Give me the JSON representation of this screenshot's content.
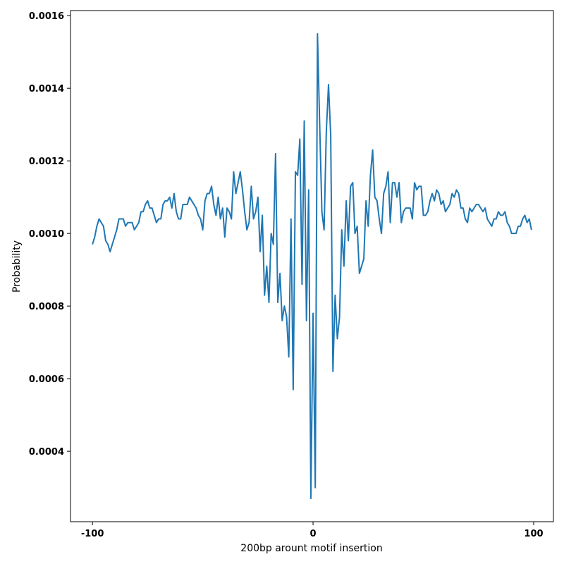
{
  "chart_data": {
    "type": "line",
    "xlabel": "200bp arount motif insertion",
    "ylabel": "Probability",
    "color": "#1f77b4",
    "grid": false,
    "xlim": [
      -109.95,
      108.95
    ],
    "xticks": [
      -100,
      0,
      100
    ],
    "ylim": [
      0.000206,
      0.001614
    ],
    "yticks": [
      0.0004,
      0.0006,
      0.0008,
      {
        "value": 0.001,
        "label": "0.0010"
      },
      0.0012,
      0.0014,
      0.0016
    ],
    "x": [
      -100,
      -99,
      -98,
      -97,
      -96,
      -95,
      -94,
      -93,
      -92,
      -91,
      -90,
      -89,
      -88,
      -87,
      -86,
      -85,
      -84,
      -83,
      -82,
      -81,
      -80,
      -79,
      -78,
      -77,
      -76,
      -75,
      -74,
      -73,
      -72,
      -71,
      -70,
      -69,
      -68,
      -67,
      -66,
      -65,
      -64,
      -63,
      -62,
      -61,
      -60,
      -59,
      -58,
      -57,
      -56,
      -55,
      -54,
      -53,
      -52,
      -51,
      -50,
      -49,
      -48,
      -47,
      -46,
      -45,
      -44,
      -43,
      -42,
      -41,
      -40,
      -39,
      -38,
      -37,
      -36,
      -35,
      -34,
      -33,
      -32,
      -31,
      -30,
      -29,
      -28,
      -27,
      -26,
      -25,
      -24,
      -23,
      -22,
      -21,
      -20,
      -19,
      -18,
      -17,
      -16,
      -15,
      -14,
      -13,
      -12,
      -11,
      -10,
      -9,
      -8,
      -7,
      -6,
      -5,
      -4,
      -3,
      -2,
      -1,
      0,
      1,
      2,
      3,
      4,
      5,
      6,
      7,
      8,
      9,
      10,
      11,
      12,
      13,
      14,
      15,
      16,
      17,
      18,
      19,
      20,
      21,
      22,
      23,
      24,
      25,
      26,
      27,
      28,
      29,
      30,
      31,
      32,
      33,
      34,
      35,
      36,
      37,
      38,
      39,
      40,
      41,
      42,
      43,
      44,
      45,
      46,
      47,
      48,
      49,
      50,
      51,
      52,
      53,
      54,
      55,
      56,
      57,
      58,
      59,
      60,
      61,
      62,
      63,
      64,
      65,
      66,
      67,
      68,
      69,
      70,
      71,
      72,
      73,
      74,
      75,
      76,
      77,
      78,
      79,
      80,
      81,
      82,
      83,
      84,
      85,
      86,
      87,
      88,
      89,
      90,
      91,
      92,
      93,
      94,
      95,
      96,
      97,
      98,
      99
    ],
    "values": [
      0.00097,
      0.00099,
      0.00102,
      0.00104,
      0.00103,
      0.00102,
      0.00098,
      0.00097,
      0.00095,
      0.00097,
      0.00099,
      0.00101,
      0.00104,
      0.00104,
      0.00104,
      0.00102,
      0.00103,
      0.00103,
      0.00103,
      0.00101,
      0.00102,
      0.00103,
      0.00106,
      0.00106,
      0.00108,
      0.00109,
      0.00107,
      0.00107,
      0.00105,
      0.00103,
      0.00104,
      0.00104,
      0.00108,
      0.00109,
      0.00109,
      0.0011,
      0.00107,
      0.00111,
      0.00106,
      0.00104,
      0.00104,
      0.00108,
      0.00108,
      0.00108,
      0.0011,
      0.00109,
      0.00108,
      0.00107,
      0.00105,
      0.00104,
      0.00101,
      0.00109,
      0.00111,
      0.00111,
      0.00113,
      0.00108,
      0.00105,
      0.0011,
      0.00104,
      0.00107,
      0.00099,
      0.00107,
      0.00106,
      0.00104,
      0.00117,
      0.00111,
      0.00114,
      0.00117,
      0.00112,
      0.00106,
      0.00101,
      0.00103,
      0.00113,
      0.00104,
      0.00106,
      0.0011,
      0.00095,
      0.00105,
      0.00083,
      0.00091,
      0.00081,
      0.001,
      0.00097,
      0.00122,
      0.00081,
      0.00089,
      0.00076,
      0.0008,
      0.00077,
      0.00066,
      0.00104,
      0.00057,
      0.00117,
      0.00116,
      0.00126,
      0.00086,
      0.00131,
      0.00076,
      0.00112,
      0.00027,
      0.00078,
      0.0003,
      0.00155,
      0.0013,
      0.00106,
      0.00101,
      0.00128,
      0.00141,
      0.00127,
      0.00062,
      0.00083,
      0.00071,
      0.00077,
      0.00101,
      0.00091,
      0.00109,
      0.00098,
      0.00113,
      0.00114,
      0.001,
      0.00102,
      0.00089,
      0.00091,
      0.00093,
      0.00109,
      0.00102,
      0.00116,
      0.00123,
      0.0011,
      0.00109,
      0.00104,
      0.001,
      0.00111,
      0.00113,
      0.00117,
      0.00103,
      0.00114,
      0.00114,
      0.0011,
      0.00114,
      0.00103,
      0.00106,
      0.00107,
      0.00107,
      0.00107,
      0.00104,
      0.00114,
      0.00112,
      0.00113,
      0.00113,
      0.00105,
      0.00105,
      0.00106,
      0.00109,
      0.00111,
      0.00109,
      0.00112,
      0.00111,
      0.00108,
      0.00109,
      0.00106,
      0.00107,
      0.00108,
      0.00111,
      0.0011,
      0.00112,
      0.00111,
      0.00107,
      0.00107,
      0.00104,
      0.00103,
      0.00107,
      0.00106,
      0.00107,
      0.00108,
      0.00108,
      0.00107,
      0.00106,
      0.00107,
      0.00104,
      0.00103,
      0.00102,
      0.00104,
      0.00104,
      0.00106,
      0.00105,
      0.00105,
      0.00106,
      0.00103,
      0.00102,
      0.001,
      0.001,
      0.001,
      0.00102,
      0.00102,
      0.00104,
      0.00105,
      0.00103,
      0.00104,
      0.00101
    ]
  }
}
